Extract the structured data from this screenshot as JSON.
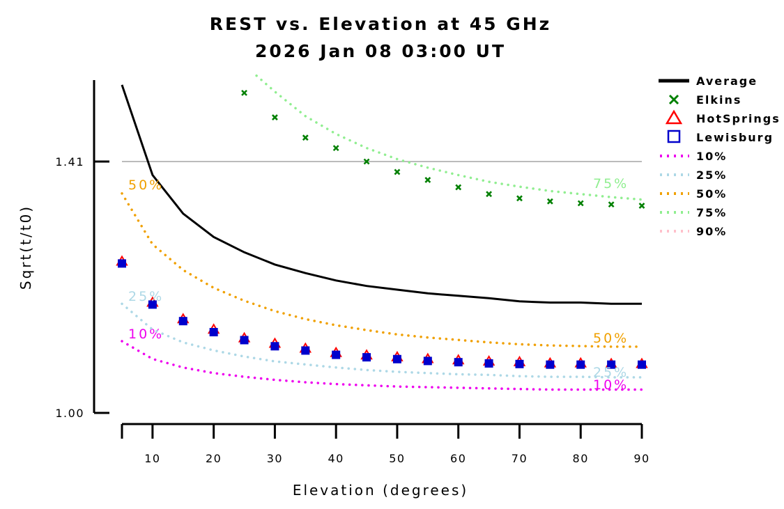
{
  "chart_data": {
    "type": "line",
    "title": "REST vs. Elevation at 45 GHz",
    "subtitle": "2026 Jan 08 03:00 UT",
    "xlabel": "Elevation (degrees)",
    "ylabel": "Sqrt(t/t0)",
    "xlim": [
      5,
      90
    ],
    "x_ticks": [
      10,
      20,
      30,
      40,
      50,
      60,
      70,
      80,
      90
    ],
    "y_ticks": [
      {
        "value": 1.0,
        "label": "1.00"
      },
      {
        "value": 1.41,
        "label": "1.41"
      }
    ],
    "reference_line": 1.41,
    "legend_position": "right",
    "series": [
      {
        "name": "Average",
        "kind": "line",
        "color": "#000000",
        "x": [
          5,
          10,
          15,
          20,
          25,
          30,
          35,
          40,
          45,
          50,
          55,
          60,
          65,
          70,
          75,
          80,
          85,
          90
        ],
        "y": [
          1.535,
          1.388,
          1.325,
          1.287,
          1.262,
          1.242,
          1.228,
          1.216,
          1.207,
          1.201,
          1.195,
          1.191,
          1.187,
          1.182,
          1.18,
          1.18,
          1.178,
          1.178
        ]
      },
      {
        "name": "Elkins",
        "kind": "marker",
        "marker": "x",
        "color": "#008000",
        "x": [
          25,
          30,
          35,
          40,
          45,
          50,
          55,
          60,
          65,
          70,
          75,
          80,
          85,
          90
        ],
        "y": [
          1.522,
          1.482,
          1.449,
          1.432,
          1.41,
          1.393,
          1.38,
          1.368,
          1.357,
          1.35,
          1.345,
          1.342,
          1.34,
          1.338
        ]
      },
      {
        "name": "HotSprings",
        "kind": "marker",
        "marker": "triangle",
        "color": "#ff0000",
        "x": [
          5,
          10,
          15,
          20,
          25,
          30,
          35,
          40,
          45,
          50,
          55,
          60,
          65,
          70,
          75,
          80,
          85,
          90
        ],
        "y": [
          1.247,
          1.18,
          1.153,
          1.136,
          1.122,
          1.113,
          1.105,
          1.098,
          1.094,
          1.091,
          1.088,
          1.086,
          1.084,
          1.083,
          1.081,
          1.081,
          1.08,
          1.08
        ]
      },
      {
        "name": "Lewisburg",
        "kind": "marker",
        "marker": "square",
        "color": "#0000cc",
        "x": [
          5,
          10,
          15,
          20,
          25,
          30,
          35,
          40,
          45,
          50,
          55,
          60,
          65,
          70,
          75,
          80,
          85,
          90
        ],
        "y": [
          1.246,
          1.179,
          1.152,
          1.134,
          1.121,
          1.111,
          1.104,
          1.097,
          1.093,
          1.09,
          1.087,
          1.085,
          1.083,
          1.082,
          1.081,
          1.081,
          1.081,
          1.081
        ]
      },
      {
        "name": "10%",
        "kind": "dotted",
        "color": "#ee00ee",
        "label_text": "10%",
        "x": [
          5,
          10,
          15,
          20,
          25,
          30,
          35,
          40,
          45,
          50,
          55,
          60,
          65,
          70,
          75,
          80,
          85,
          90
        ],
        "y": [
          1.117,
          1.088,
          1.074,
          1.065,
          1.059,
          1.054,
          1.05,
          1.047,
          1.045,
          1.043,
          1.042,
          1.041,
          1.04,
          1.039,
          1.038,
          1.038,
          1.038,
          1.038
        ]
      },
      {
        "name": "25%",
        "kind": "dotted",
        "color": "#add8e6",
        "label_text": "25%",
        "x": [
          5,
          10,
          15,
          20,
          25,
          30,
          35,
          40,
          45,
          50,
          55,
          60,
          65,
          70,
          75,
          80,
          85,
          90
        ],
        "y": [
          1.178,
          1.136,
          1.115,
          1.102,
          1.092,
          1.084,
          1.079,
          1.074,
          1.07,
          1.067,
          1.065,
          1.063,
          1.062,
          1.06,
          1.059,
          1.059,
          1.058,
          1.058
        ]
      },
      {
        "name": "50%",
        "kind": "dotted",
        "color": "#f0a000",
        "label_text": "50%",
        "x": [
          5,
          10,
          15,
          20,
          25,
          30,
          35,
          40,
          45,
          50,
          55,
          60,
          65,
          70,
          75,
          80,
          85,
          90
        ],
        "y": [
          1.358,
          1.275,
          1.233,
          1.204,
          1.183,
          1.166,
          1.153,
          1.143,
          1.135,
          1.128,
          1.123,
          1.119,
          1.115,
          1.112,
          1.11,
          1.109,
          1.108,
          1.108
        ]
      },
      {
        "name": "75%",
        "kind": "dotted",
        "color": "#90ee90",
        "label_text": "75%",
        "x": [
          27,
          30,
          35,
          40,
          45,
          50,
          55,
          60,
          65,
          70,
          75,
          80,
          85,
          90
        ],
        "y": [
          1.55,
          1.524,
          1.484,
          1.455,
          1.432,
          1.414,
          1.4,
          1.388,
          1.377,
          1.369,
          1.362,
          1.357,
          1.352,
          1.348
        ]
      },
      {
        "name": "90%",
        "kind": "dotted",
        "color": "#ffc0cb",
        "label_text": "90%",
        "x": [],
        "y": []
      }
    ]
  }
}
